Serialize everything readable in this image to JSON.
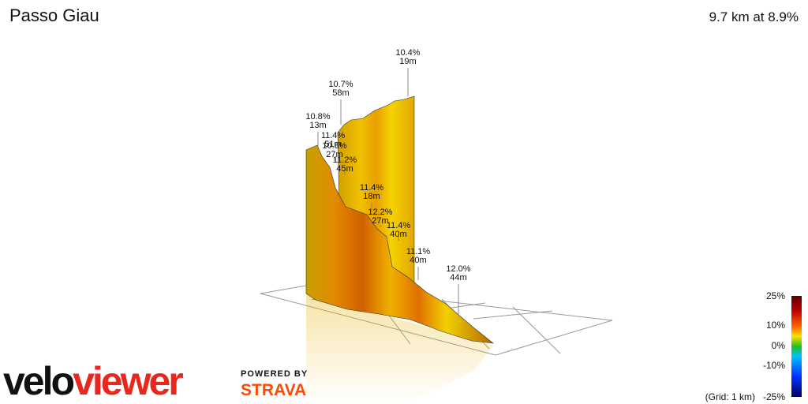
{
  "header": {
    "title": "Passo Giau",
    "summary": "9.7 km at 8.9%"
  },
  "annotations": [
    {
      "grade": "10.4%",
      "length": "19m"
    },
    {
      "grade": "10.7%",
      "length": "58m"
    },
    {
      "grade": "10.8%",
      "length": "13m"
    },
    {
      "grade": "11.4%",
      "length": "51m"
    },
    {
      "grade": "10.8%",
      "length": "27m"
    },
    {
      "grade": "11.2%",
      "length": "45m"
    },
    {
      "grade": "11.4%",
      "length": "18m"
    },
    {
      "grade": "12.2%",
      "length": "27m"
    },
    {
      "grade": "11.4%",
      "length": "40m"
    },
    {
      "grade": "11.1%",
      "length": "40m"
    },
    {
      "grade": "12.0%",
      "length": "44m"
    }
  ],
  "legend": {
    "ticks": [
      "25%",
      "10%",
      "0%",
      "-10%",
      "-25%"
    ],
    "grid_note": "(Grid: 1 km)"
  },
  "branding": {
    "logo": [
      "velo",
      "viewer"
    ],
    "powered_by": "POWERED BY",
    "partner": "STRAVA"
  }
}
